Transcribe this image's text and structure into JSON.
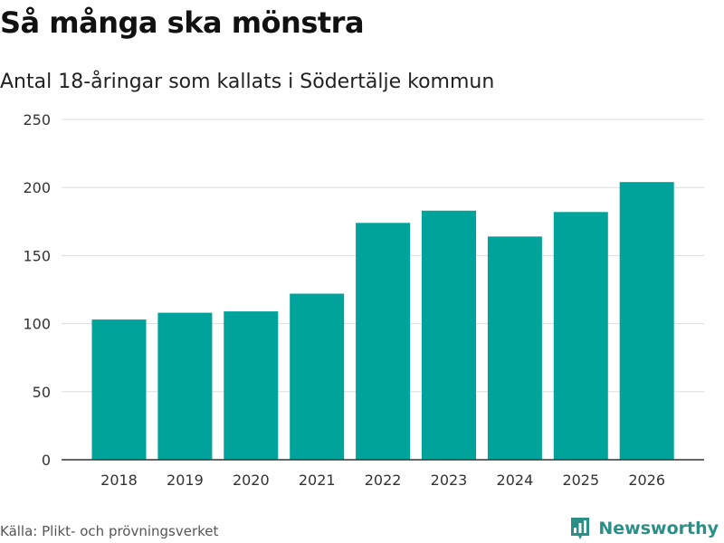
{
  "header": {
    "title": "Så många ska mönstra",
    "subtitle": "Antal 18-åringar som kallats i Södertälje kommun"
  },
  "footer": {
    "source": "Källa: Plikt- och prövningsverket",
    "brand": "Newsworthy"
  },
  "colors": {
    "bar": "#00A39A",
    "grid": "#dddddd",
    "axis": "#333333",
    "brand": "#2a8f86"
  },
  "chart_data": {
    "type": "bar",
    "title": "Så många ska mönstra",
    "subtitle": "Antal 18-åringar som kallats i Södertälje kommun",
    "xlabel": "",
    "ylabel": "",
    "categories": [
      "2018",
      "2019",
      "2020",
      "2021",
      "2022",
      "2023",
      "2024",
      "2025",
      "2026"
    ],
    "values": [
      103,
      108,
      109,
      122,
      174,
      183,
      164,
      182,
      204
    ],
    "ylim": [
      0,
      250
    ],
    "yticks": [
      0,
      50,
      100,
      150,
      200,
      250
    ],
    "grid": true,
    "legend": "none"
  }
}
